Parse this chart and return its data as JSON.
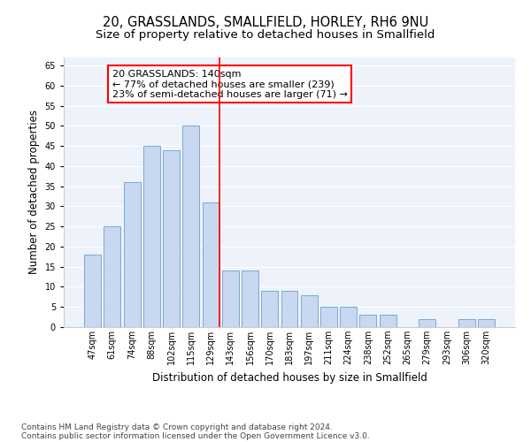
{
  "title": "20, GRASSLANDS, SMALLFIELD, HORLEY, RH6 9NU",
  "subtitle": "Size of property relative to detached houses in Smallfield",
  "xlabel": "Distribution of detached houses by size in Smallfield",
  "ylabel": "Number of detached properties",
  "categories": [
    "47sqm",
    "61sqm",
    "74sqm",
    "88sqm",
    "102sqm",
    "115sqm",
    "129sqm",
    "143sqm",
    "156sqm",
    "170sqm",
    "183sqm",
    "197sqm",
    "211sqm",
    "224sqm",
    "238sqm",
    "252sqm",
    "265sqm",
    "279sqm",
    "293sqm",
    "306sqm",
    "320sqm"
  ],
  "values": [
    18,
    25,
    36,
    45,
    44,
    50,
    31,
    14,
    14,
    9,
    9,
    8,
    5,
    5,
    3,
    3,
    0,
    2,
    0,
    2,
    2
  ],
  "bar_color": "#c8d8f0",
  "bar_edge_color": "#7aaad0",
  "red_line_index": 6,
  "annotation_text": "20 GRASSLANDS: 140sqm\n← 77% of detached houses are smaller (239)\n23% of semi-detached houses are larger (71) →",
  "annotation_box_color": "white",
  "annotation_box_edge": "red",
  "ylim": [
    0,
    67
  ],
  "yticks": [
    0,
    5,
    10,
    15,
    20,
    25,
    30,
    35,
    40,
    45,
    50,
    55,
    60,
    65
  ],
  "footer_line1": "Contains HM Land Registry data © Crown copyright and database right 2024.",
  "footer_line2": "Contains public sector information licensed under the Open Government Licence v3.0.",
  "bg_color": "#eef2fb",
  "grid_color": "white",
  "title_fontsize": 10.5,
  "subtitle_fontsize": 9.5,
  "tick_fontsize": 7,
  "ylabel_fontsize": 8.5,
  "xlabel_fontsize": 8.5,
  "footer_fontsize": 6.5,
  "annotation_fontsize": 8
}
